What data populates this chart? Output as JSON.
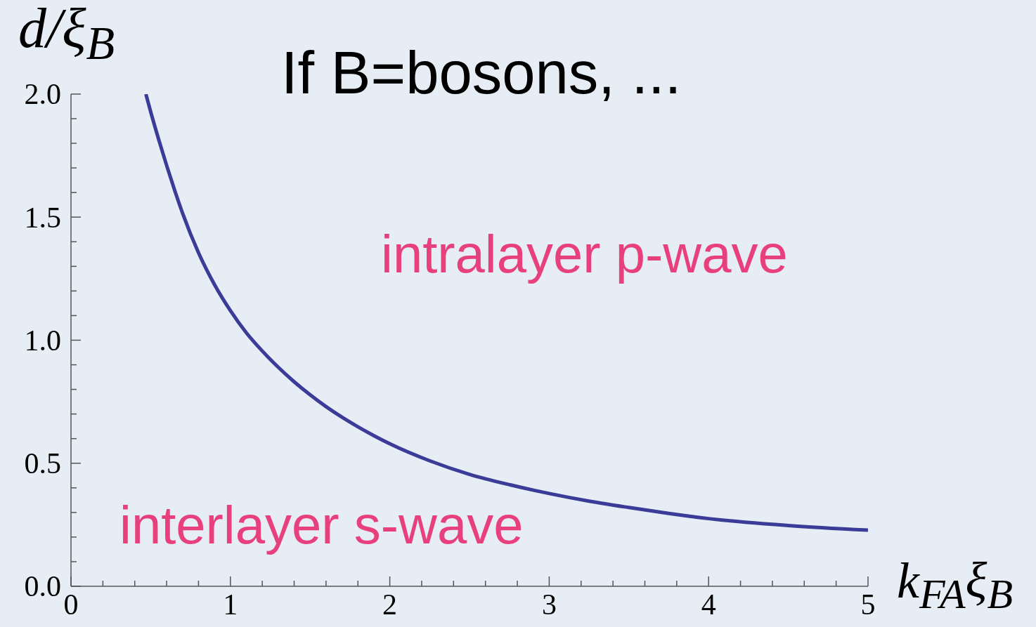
{
  "chart_data": {
    "type": "line",
    "title": "If B=bosons, ...",
    "xlabel": "k$_{FA}$ξ$_{B}$",
    "ylabel": "d/ξ$_{B}$",
    "annotations": [
      "intralayer p-wave",
      "interlayer s-wave"
    ],
    "x": [
      0.47,
      0.5,
      0.55,
      0.6,
      0.65,
      0.7,
      0.8,
      0.9,
      1.0,
      1.1,
      1.2,
      1.3,
      1.4,
      1.5,
      1.6,
      1.7,
      1.8,
      1.9,
      2.0,
      2.25,
      2.5,
      2.75,
      3.0,
      3.25,
      3.5,
      3.75,
      4.0,
      4.5,
      5.0
    ],
    "series": [
      {
        "color": "#3b3b98",
        "values": [
          2.0,
          1.928,
          1.816,
          1.71,
          1.61,
          1.516,
          1.355,
          1.226,
          1.12,
          1.03,
          0.956,
          0.89,
          0.831,
          0.778,
          0.73,
          0.687,
          0.648,
          0.612,
          0.579,
          0.51,
          0.455,
          0.413,
          0.377,
          0.346,
          0.32,
          0.296,
          0.275,
          0.247,
          0.228
        ]
      }
    ],
    "xlim": [
      0,
      5
    ],
    "ylim": [
      0,
      2
    ],
    "xticks": [
      0,
      {
        "value": 0.2,
        "label": null
      },
      {
        "value": 0.4,
        "label": null
      },
      {
        "value": 0.6,
        "label": null
      },
      {
        "value": 0.8,
        "label": null
      },
      1,
      {
        "value": 1.2,
        "label": null
      },
      {
        "value": 1.4,
        "label": null
      },
      {
        "value": 1.6,
        "label": null
      },
      {
        "value": 1.8,
        "label": null
      },
      2,
      {
        "value": 2.2,
        "label": null
      },
      {
        "value": 2.4,
        "label": null
      },
      {
        "value": 2.6,
        "label": null
      },
      {
        "value": 2.8,
        "label": null
      },
      3,
      {
        "value": 3.2,
        "label": null
      },
      {
        "value": 3.4,
        "label": null
      },
      {
        "value": 3.6,
        "label": null
      },
      {
        "value": 3.8,
        "label": null
      },
      4,
      {
        "value": 4.2,
        "label": null
      },
      {
        "value": 4.4,
        "label": null
      },
      {
        "value": 4.6,
        "label": null
      },
      {
        "value": 4.8,
        "label": null
      },
      5
    ],
    "yticks": [
      {
        "value": 0,
        "label": "0.0"
      },
      {
        "value": 0.1,
        "label": null
      },
      {
        "value": 0.2,
        "label": null
      },
      {
        "value": 0.3,
        "label": null
      },
      {
        "value": 0.4,
        "label": null
      },
      {
        "value": 0.5,
        "label": "0.5"
      },
      {
        "value": 0.6,
        "label": null
      },
      {
        "value": 0.7,
        "label": null
      },
      {
        "value": 0.8,
        "label": null
      },
      {
        "value": 0.9,
        "label": null
      },
      {
        "value": 1.0,
        "label": "1.0"
      },
      {
        "value": 1.1,
        "label": null
      },
      {
        "value": 1.2,
        "label": null
      },
      {
        "value": 1.3,
        "label": null
      },
      {
        "value": 1.4,
        "label": null
      },
      {
        "value": 1.5,
        "label": "1.5"
      },
      {
        "value": 1.6,
        "label": null
      },
      {
        "value": 1.7,
        "label": null
      },
      {
        "value": 1.8,
        "label": null
      },
      {
        "value": 1.9,
        "label": null
      },
      {
        "value": 2.0,
        "label": "2.0"
      }
    ]
  }
}
